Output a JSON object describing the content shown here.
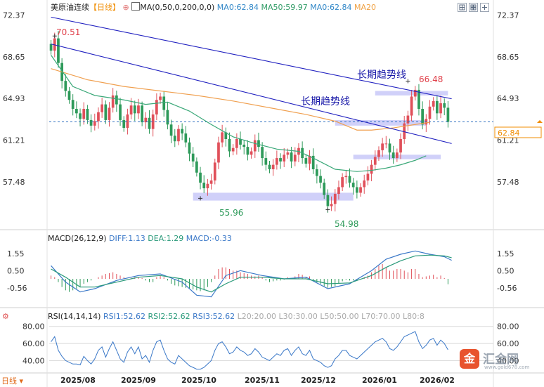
{
  "header": {
    "instrument": "美原油连续",
    "period": "【日线】",
    "ma_label": "MA(0,50,0,200,0,0)",
    "ma_values": [
      {
        "text": "MA0:62.84",
        "color": "#2f86c7"
      },
      {
        "text": "MA50:59.97",
        "color": "#2e9a64"
      },
      {
        "text": "MA0:62.84",
        "color": "#2f86c7"
      },
      {
        "text": "MA20",
        "color": "#f0a040"
      }
    ]
  },
  "macd_header": {
    "label": "MACD(26,12,9)",
    "items": [
      {
        "text": "DIFF:1.13",
        "color": "#3a78c8"
      },
      {
        "text": "DEA:1.29",
        "color": "#2a9a7a"
      },
      {
        "text": "MACD:-0.33",
        "color": "#3a78c8"
      }
    ]
  },
  "rsi_header": {
    "label": "RSI(14,14,14)",
    "items": [
      {
        "text": "RSI1:52.62",
        "color": "#3a78c8"
      },
      {
        "text": "RSI2:52.62",
        "color": "#2a9a7a"
      },
      {
        "text": "RSI3:52.62",
        "color": "#3a78c8"
      },
      {
        "text": "L20:20.00",
        "color": "#aaaaaa"
      },
      {
        "text": "L30:30.00",
        "color": "#aaaaaa"
      },
      {
        "text": "L50:50.00",
        "color": "#aaaaaa"
      },
      {
        "text": "L70:70.00",
        "color": "#aaaaaa"
      },
      {
        "text": "L80:8",
        "color": "#aaaaaa"
      }
    ]
  },
  "footer": {
    "period_button": "日线"
  },
  "watermark": {
    "text": "汇金网",
    "sub": "www.gold678.com",
    "badge": "金"
  },
  "colors": {
    "up": "#e0505a",
    "down": "#2e9a5a",
    "ma200": "#f0a050",
    "ma50": "#3aa878",
    "trend": "#2020c0",
    "box": "#c8c8f8",
    "price_tag": "#f08c00"
  },
  "chart_data": {
    "type": "candlestick",
    "price_axis": {
      "ticks": [
        "72.37",
        "68.65",
        "64.93",
        "61.21",
        "57.48"
      ],
      "ylim": [
        53.2,
        72.6
      ]
    },
    "x_tick_labels": [
      "2025/08",
      "2025/09",
      "2025/10",
      "2025/11",
      "2025/12",
      "2026/01",
      "2026/02"
    ],
    "last_price": "62.84",
    "annotations": {
      "high_1": "70.51",
      "low_1": "55.96",
      "low_2": "54.98",
      "high_2": "66.48",
      "trend_upper": "长期趋势线",
      "trend_lower": "长期趋势线"
    },
    "trendlines": [
      {
        "name": "upper",
        "points": [
          [
            0,
            72.2
          ],
          [
            110,
            64.9
          ]
        ]
      },
      {
        "name": "lower",
        "points": [
          [
            0,
            69.8
          ],
          [
            110,
            60.9
          ]
        ]
      }
    ],
    "zones": [
      {
        "from": 39,
        "to": 83,
        "low": 55.8,
        "high": 56.5
      },
      {
        "from": 78,
        "to": 103,
        "low": 62.5,
        "high": 63.0
      },
      {
        "from": 83,
        "to": 107,
        "low": 59.5,
        "high": 59.9
      },
      {
        "from": 89,
        "to": 109,
        "low": 65.2,
        "high": 65.6
      }
    ],
    "ma50": [
      [
        0,
        68.8
      ],
      [
        6,
        66.0
      ],
      [
        12,
        65.2
      ],
      [
        20,
        64.8
      ],
      [
        26,
        64.4
      ],
      [
        32,
        64.6
      ],
      [
        38,
        63.8
      ],
      [
        44,
        62.6
      ],
      [
        50,
        61.5
      ],
      [
        56,
        60.9
      ],
      [
        62,
        60.4
      ],
      [
        68,
        60.2
      ],
      [
        72,
        59.6
      ],
      [
        78,
        58.6
      ],
      [
        84,
        58.4
      ],
      [
        88,
        58.5
      ],
      [
        92,
        58.7
      ],
      [
        96,
        59.0
      ],
      [
        100,
        59.4
      ],
      [
        103,
        59.8
      ]
    ],
    "ma200": [
      [
        0,
        67.6
      ],
      [
        10,
        66.6
      ],
      [
        20,
        66.0
      ],
      [
        30,
        65.6
      ],
      [
        40,
        65.2
      ],
      [
        50,
        64.7
      ],
      [
        60,
        64.1
      ],
      [
        70,
        63.5
      ],
      [
        78,
        62.9
      ],
      [
        84,
        62.1
      ],
      [
        88,
        62.1
      ],
      [
        94,
        62.3
      ],
      [
        100,
        62.6
      ],
      [
        104,
        62.8
      ]
    ],
    "closes": [
      69.2,
      70.3,
      68.1,
      66.5,
      65.6,
      64.8,
      64.0,
      63.6,
      63.1,
      64.0,
      63.0,
      62.5,
      62.9,
      63.7,
      64.4,
      63.0,
      64.1,
      65.2,
      64.4,
      63.0,
      62.3,
      63.5,
      64.3,
      63.6,
      64.3,
      62.8,
      63.2,
      62.2,
      63.5,
      64.8,
      65.1,
      63.9,
      62.6,
      61.6,
      61.1,
      62.2,
      61.8,
      61.0,
      60.0,
      59.3,
      58.3,
      57.4,
      56.9,
      57.3,
      57.6,
      59.2,
      61.0,
      61.9,
      61.3,
      60.2,
      60.5,
      61.3,
      60.8,
      60.6,
      59.9,
      60.2,
      61.2,
      60.6,
      59.6,
      59.0,
      58.6,
      59.0,
      59.6,
      59.3,
      59.9,
      60.1,
      59.3,
      59.9,
      60.5,
      59.6,
      59.1,
      59.8,
      58.6,
      58.0,
      57.4,
      56.3,
      55.3,
      55.5,
      56.4,
      57.0,
      57.9,
      58.0,
      57.4,
      57.0,
      56.5,
      57.0,
      57.6,
      58.2,
      59.0,
      59.7,
      60.3,
      60.9,
      60.9,
      60.1,
      59.6,
      60.1,
      61.3,
      62.7,
      63.4,
      65.1,
      65.7,
      64.0,
      62.6,
      63.1,
      64.2,
      64.7,
      63.6,
      64.5,
      64.1,
      62.84
    ],
    "macd": {
      "ylim": [
        -1.5,
        2.1
      ],
      "ticks": [
        "1.55",
        "0.50",
        "-0.56"
      ],
      "hist": [
        0.2,
        0.1,
        -0.2,
        -0.5,
        -0.7,
        -0.8,
        -0.7,
        -0.6,
        -0.5,
        -0.3,
        -0.2,
        -0.1,
        0.0,
        0.1,
        0.2,
        0.3,
        0.35,
        0.4,
        0.3,
        0.2,
        0.1,
        0.0,
        0.05,
        0.1,
        0.1,
        0.05,
        -0.1,
        -0.2,
        -0.2,
        0.1,
        0.2,
        0.1,
        -0.1,
        -0.3,
        -0.4,
        -0.45,
        -0.5,
        -0.55,
        -0.6,
        -0.65,
        -0.7,
        -0.75,
        -0.7,
        -0.5,
        -0.2,
        0.2,
        0.6,
        0.7,
        0.7,
        0.6,
        0.5,
        0.5,
        0.4,
        0.35,
        0.3,
        0.2,
        0.15,
        0.2,
        0.1,
        -0.1,
        -0.2,
        -0.15,
        -0.1,
        -0.1,
        -0.05,
        0.1,
        0.0,
        0.15,
        0.3,
        0.25,
        0.1,
        0.15,
        -0.1,
        -0.2,
        -0.3,
        -0.45,
        -0.55,
        -0.5,
        -0.45,
        -0.3,
        -0.15,
        -0.05,
        -0.1,
        -0.1,
        -0.1,
        0.0,
        0.1,
        0.2,
        0.4,
        0.6,
        0.8,
        0.9,
        0.7,
        0.5,
        0.5,
        0.6,
        0.6,
        0.5,
        0.4,
        0.6,
        0.6,
        0.3,
        0.1,
        0.15,
        0.2,
        0.25,
        0.1,
        0.2,
        0.05,
        -0.33
      ],
      "diff": [
        [
          0,
          0.8
        ],
        [
          4,
          -0.2
        ],
        [
          8,
          -0.8
        ],
        [
          12,
          -0.6
        ],
        [
          18,
          -0.1
        ],
        [
          24,
          0.2
        ],
        [
          30,
          0.3
        ],
        [
          36,
          -0.2
        ],
        [
          40,
          -1.0
        ],
        [
          44,
          -1.1
        ],
        [
          48,
          0.2
        ],
        [
          52,
          0.5
        ],
        [
          58,
          0.2
        ],
        [
          64,
          0.0
        ],
        [
          70,
          0.1
        ],
        [
          76,
          -0.6
        ],
        [
          82,
          -0.3
        ],
        [
          88,
          0.5
        ],
        [
          92,
          1.2
        ],
        [
          96,
          1.5
        ],
        [
          100,
          1.7
        ],
        [
          104,
          1.5
        ],
        [
          108,
          1.35
        ],
        [
          110,
          1.13
        ]
      ],
      "dea": [
        [
          0,
          0.6
        ],
        [
          4,
          0.1
        ],
        [
          8,
          -0.5
        ],
        [
          12,
          -0.5
        ],
        [
          18,
          -0.2
        ],
        [
          24,
          0.1
        ],
        [
          30,
          0.2
        ],
        [
          36,
          0.0
        ],
        [
          40,
          -0.5
        ],
        [
          44,
          -0.8
        ],
        [
          48,
          -0.3
        ],
        [
          52,
          0.1
        ],
        [
          58,
          0.1
        ],
        [
          64,
          0.0
        ],
        [
          70,
          0.0
        ],
        [
          76,
          -0.3
        ],
        [
          82,
          -0.25
        ],
        [
          88,
          0.2
        ],
        [
          92,
          0.7
        ],
        [
          96,
          1.1
        ],
        [
          100,
          1.4
        ],
        [
          104,
          1.45
        ],
        [
          108,
          1.4
        ],
        [
          110,
          1.29
        ]
      ]
    },
    "rsi": {
      "ylim": [
        28,
        88
      ],
      "ticks": [
        "80.00",
        "60.00",
        "40.00"
      ],
      "values": [
        62,
        68,
        52,
        45,
        40,
        38,
        36,
        36,
        35,
        45,
        40,
        36,
        42,
        52,
        56,
        44,
        54,
        62,
        52,
        42,
        38,
        50,
        56,
        48,
        56,
        42,
        46,
        38,
        52,
        62,
        64,
        52,
        42,
        38,
        36,
        46,
        42,
        38,
        34,
        32,
        30,
        30,
        32,
        36,
        40,
        52,
        60,
        62,
        56,
        48,
        50,
        56,
        52,
        50,
        46,
        48,
        54,
        50,
        44,
        42,
        40,
        44,
        48,
        46,
        52,
        54,
        46,
        52,
        56,
        48,
        46,
        52,
        42,
        40,
        38,
        34,
        32,
        34,
        42,
        46,
        52,
        52,
        46,
        44,
        42,
        46,
        50,
        54,
        58,
        62,
        64,
        66,
        62,
        54,
        52,
        56,
        62,
        68,
        70,
        72,
        74,
        62,
        54,
        58,
        64,
        66,
        58,
        64,
        60,
        52.62
      ]
    }
  }
}
